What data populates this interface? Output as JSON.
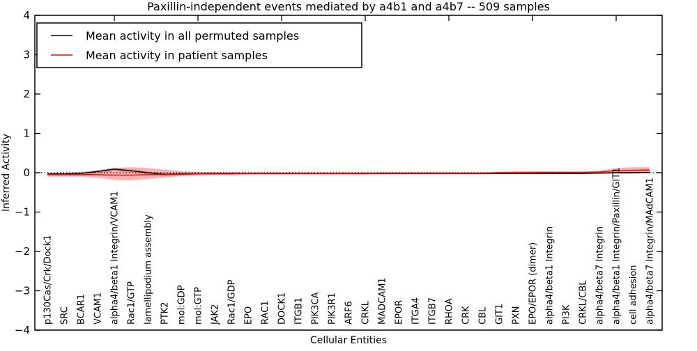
{
  "figure": {
    "background": "#ffffff",
    "frame_color": "#000000"
  },
  "chart_data": {
    "type": "line",
    "title": "Paxillin-independent events mediated by a4b1 and a4b7 -- 509 samples",
    "xlabel": "Cellular Entities",
    "ylabel": "Inferred Activity",
    "ylim": [
      -4,
      4
    ],
    "yticks": [
      4,
      3,
      2,
      1,
      0,
      -1,
      -2,
      -3,
      -4
    ],
    "grid": false,
    "zero_line": {
      "style": "dotted",
      "color": "#000000",
      "y": 0
    },
    "legend_position": "upper left",
    "legend": [
      {
        "label": "Mean activity in all permuted samples",
        "color": "#000000"
      },
      {
        "label": "Mean activity in patient samples",
        "color": "#ff0000"
      }
    ],
    "categories": [
      "p130Cas/Crk/Dock1",
      "SRC",
      "BCAR1",
      "VCAM1",
      "alpha4/beta1 Integrin/VCAM1",
      "Rac1/GTP",
      "lamellipodium assembly",
      "PTK2",
      "mol:GDP",
      "mol:GTP",
      "JAK2",
      "Rac1/GDP",
      "EPO",
      "RAC1",
      "DOCK1",
      "ITGB1",
      "PIK3CA",
      "PIK3R1",
      "ARF6",
      "CRKL",
      "MADCAM1",
      "EPOR",
      "ITGA4",
      "ITGB7",
      "RHOA",
      "CRK",
      "CBL",
      "GIT1",
      "PXN",
      "EPO/EPOR (dimer)",
      "alpha4/beta1 Integrin",
      "PI3K",
      "CRKL/CBL",
      "alpha4/beta7 Integrin",
      "alpha4/beta1 Integrin/Paxillin/GIT1",
      "cell adhesion",
      "alpha4/beta7 Integrin/MAdCAM1"
    ],
    "series": [
      {
        "name": "Mean activity in all permuted samples",
        "color": "#000000",
        "band_color": "rgba(0,0,0,0.18)",
        "values": [
          -0.03,
          -0.03,
          -0.02,
          0.03,
          0.09,
          0.05,
          0.0,
          -0.04,
          -0.03,
          -0.03,
          -0.02,
          -0.02,
          -0.02,
          -0.02,
          -0.02,
          -0.02,
          -0.02,
          -0.02,
          -0.02,
          -0.02,
          -0.02,
          -0.02,
          -0.02,
          -0.02,
          -0.02,
          -0.02,
          -0.02,
          -0.02,
          -0.02,
          -0.02,
          -0.02,
          -0.02,
          -0.02,
          -0.01,
          0.0,
          0.0,
          0.01
        ],
        "band_upper": [
          -0.01,
          -0.01,
          0.01,
          0.07,
          0.13,
          0.09,
          0.03,
          -0.01,
          -0.01,
          0.0,
          0.0,
          0.0,
          0.0,
          0.0,
          0.0,
          0.0,
          0.0,
          0.0,
          0.0,
          0.0,
          0.0,
          0.0,
          0.0,
          0.0,
          0.0,
          0.0,
          0.0,
          0.0,
          0.0,
          0.0,
          0.0,
          0.0,
          0.0,
          0.01,
          0.02,
          0.02,
          0.03
        ],
        "band_lower": [
          -0.06,
          -0.06,
          -0.06,
          -0.02,
          0.04,
          0.01,
          -0.04,
          -0.07,
          -0.06,
          -0.05,
          -0.04,
          -0.04,
          -0.04,
          -0.04,
          -0.04,
          -0.04,
          -0.04,
          -0.04,
          -0.04,
          -0.04,
          -0.04,
          -0.04,
          -0.04,
          -0.04,
          -0.04,
          -0.04,
          -0.04,
          -0.04,
          -0.04,
          -0.04,
          -0.04,
          -0.04,
          -0.04,
          -0.03,
          -0.02,
          -0.02,
          -0.01
        ]
      },
      {
        "name": "Mean activity in patient samples",
        "color": "#ff0000",
        "band_color": "rgba(255,0,0,0.30)",
        "values": [
          -0.05,
          -0.05,
          -0.05,
          -0.05,
          -0.06,
          -0.06,
          -0.05,
          -0.05,
          -0.04,
          -0.03,
          -0.03,
          -0.03,
          -0.02,
          -0.02,
          -0.02,
          -0.02,
          -0.02,
          -0.02,
          -0.02,
          -0.02,
          -0.01,
          -0.01,
          -0.01,
          -0.01,
          -0.01,
          -0.01,
          -0.01,
          0.0,
          0.0,
          0.0,
          0.01,
          0.01,
          0.01,
          0.02,
          0.05,
          0.06,
          0.07
        ],
        "band_upper": [
          0.0,
          0.0,
          0.01,
          0.06,
          0.12,
          0.14,
          0.12,
          0.08,
          0.04,
          0.02,
          0.01,
          0.01,
          0.01,
          0.01,
          0.01,
          0.01,
          0.01,
          0.01,
          0.01,
          0.01,
          0.01,
          0.01,
          0.01,
          0.01,
          0.01,
          0.01,
          0.01,
          0.02,
          0.04,
          0.04,
          0.03,
          0.02,
          0.02,
          0.05,
          0.12,
          0.14,
          0.14
        ],
        "band_lower": [
          -0.1,
          -0.1,
          -0.1,
          -0.13,
          -0.18,
          -0.2,
          -0.16,
          -0.12,
          -0.09,
          -0.07,
          -0.06,
          -0.06,
          -0.05,
          -0.05,
          -0.05,
          -0.05,
          -0.05,
          -0.05,
          -0.05,
          -0.05,
          -0.04,
          -0.04,
          -0.04,
          -0.04,
          -0.04,
          -0.04,
          -0.04,
          -0.03,
          -0.03,
          -0.03,
          -0.03,
          -0.03,
          -0.02,
          -0.02,
          -0.02,
          -0.02,
          -0.01
        ]
      }
    ]
  }
}
